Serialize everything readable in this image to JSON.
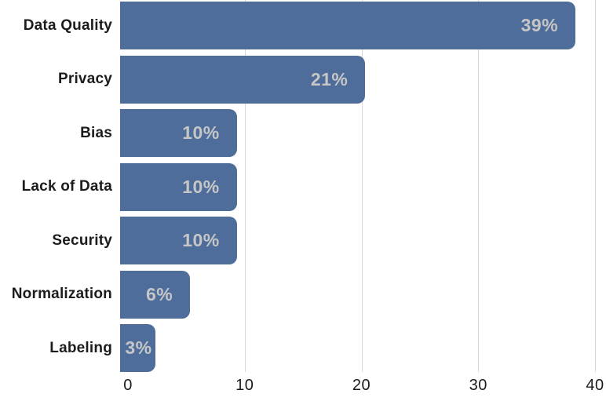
{
  "chart_data": {
    "type": "bar",
    "orientation": "horizontal",
    "title": "",
    "xlabel": "",
    "ylabel": "",
    "categories": [
      "Data Quality",
      "Privacy",
      "Bias",
      "Lack of Data",
      "Security",
      "Normalization",
      "Labeling"
    ],
    "values": [
      39,
      21,
      10,
      10,
      10,
      6,
      3
    ],
    "value_labels": [
      "39%",
      "21%",
      "10%",
      "10%",
      "10%",
      "6%",
      "3%"
    ],
    "x_ticks": [
      0,
      10,
      20,
      30,
      40
    ],
    "x_tick_labels": [
      "0",
      "10",
      "20",
      "30",
      "40"
    ],
    "xlim": [
      0,
      40
    ],
    "grid": "vertical gridlines at 10,20,30,40; no axis line; no legend",
    "legend": null,
    "colors": {
      "bar": "#4e6d9b",
      "value_label": "#c6c6c6",
      "category_label": "#1c1c1c",
      "tick_label": "#1c1c1c",
      "gridline": "#d9d9d9",
      "background": "#ffffff"
    }
  }
}
